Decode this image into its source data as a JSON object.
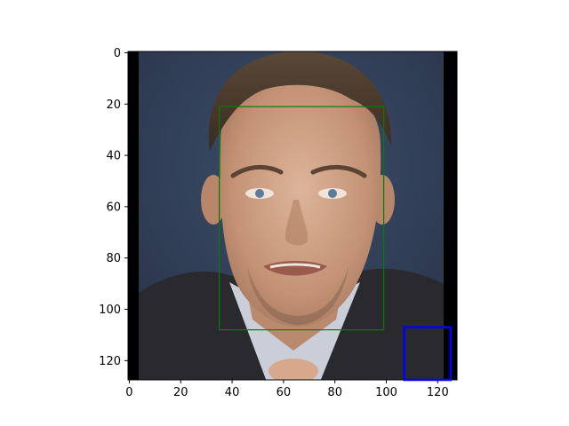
{
  "chart_data": {
    "type": "image",
    "subject": "photograph of a man's face",
    "x_ticks": [
      "0",
      "20",
      "40",
      "60",
      "80",
      "100",
      "120"
    ],
    "y_ticks": [
      "0",
      "20",
      "40",
      "60",
      "80",
      "100",
      "120"
    ],
    "x_range": [
      -0.5,
      127.5
    ],
    "y_range": [
      127.5,
      -0.5
    ],
    "y_inverted": true,
    "annotations": [
      {
        "label": "face-box",
        "color": "#008000",
        "x": [
          35,
          99
        ],
        "y": [
          21,
          108
        ]
      },
      {
        "label": "secondary-box",
        "color": "#0000ff",
        "x": [
          107,
          125
        ],
        "y": [
          107,
          128
        ]
      }
    ],
    "colors": {
      "background": "#2f3d55",
      "skin": "#c8987a",
      "hair": "#4a3a2c",
      "suit": "#2a2a2e",
      "letterbox": "#000000"
    }
  }
}
